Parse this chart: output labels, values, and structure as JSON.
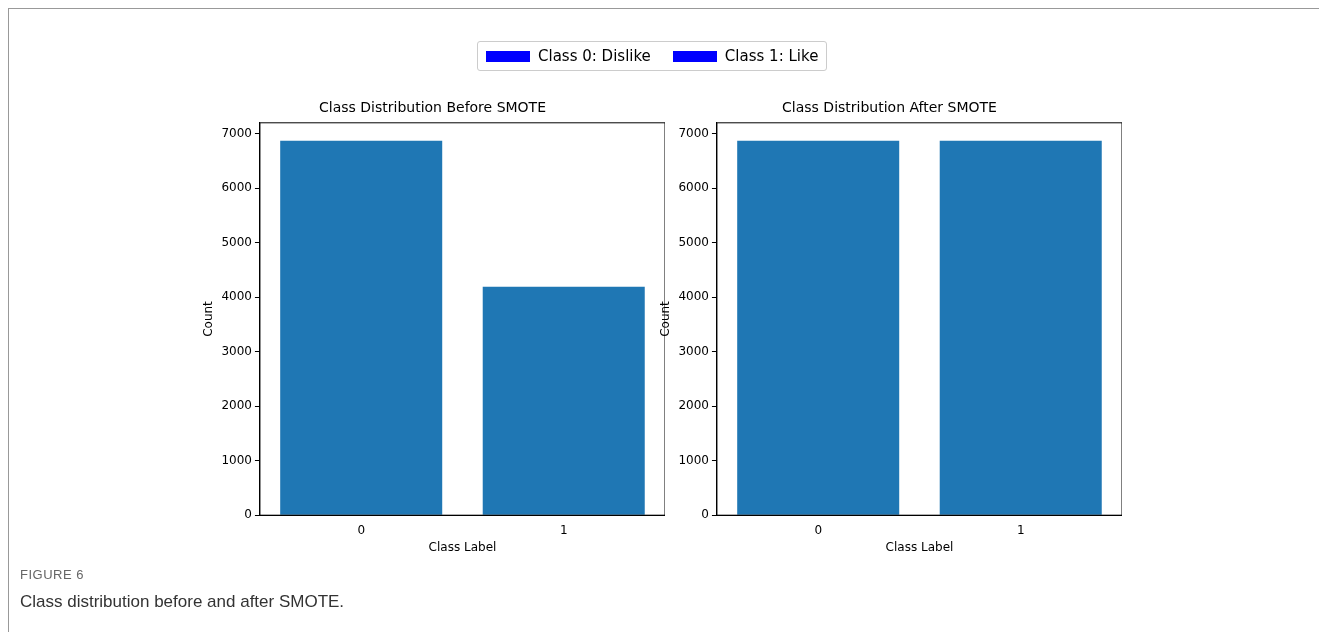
{
  "chart_data": [
    {
      "type": "bar",
      "title": "Class Distribution Before SMOTE",
      "xlabel": "Class Label",
      "ylabel": "Count",
      "categories": [
        "0",
        "1"
      ],
      "values": [
        6870,
        4190
      ],
      "color": "#1f77b4",
      "ylim": [
        0,
        7200
      ],
      "yticks": [
        0,
        1000,
        2000,
        3000,
        4000,
        5000,
        6000,
        7000
      ],
      "annotations": [
        "Class 0: Dislike",
        "Class 1: Like"
      ]
    },
    {
      "type": "bar",
      "title": "Class Distribution After SMOTE",
      "xlabel": "Class Label",
      "ylabel": "Count",
      "categories": [
        "0",
        "1"
      ],
      "values": [
        6870,
        6870
      ],
      "color": "#1f77b4",
      "ylim": [
        0,
        7200
      ],
      "yticks": [
        0,
        1000,
        2000,
        3000,
        4000,
        5000,
        6000,
        7000
      ],
      "annotations": [
        "FIGURE 6",
        "Class distribution before and after SMOTE."
      ]
    }
  ]
}
